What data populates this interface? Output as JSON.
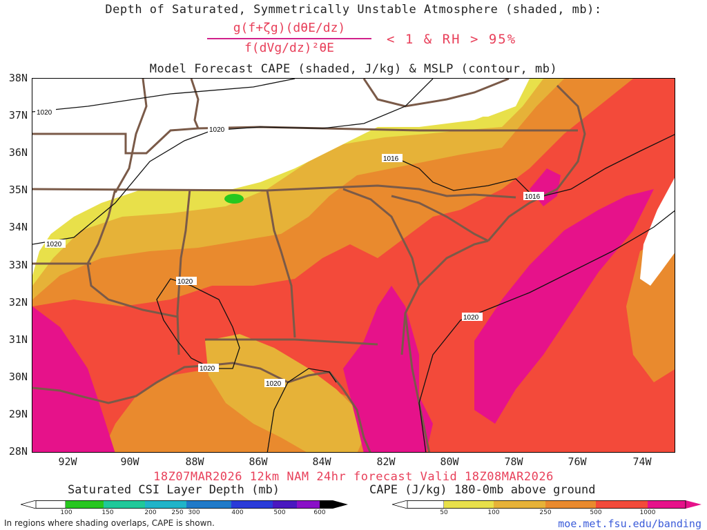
{
  "title_line1": "Depth of Saturated, Symmetrically Unstable Atmosphere (shaded, mb):",
  "equation": {
    "numerator": "g(f+ζg)(dθE/dz)",
    "denominator": "f(dVg/dz)²θE",
    "condition": "< 1 & RH > 95%"
  },
  "title_line2": "Model Forecast CAPE (shaded, J/kg) & MSLP (contour, mb)",
  "lat_labels": [
    "38N",
    "37N",
    "36N",
    "35N",
    "34N",
    "33N",
    "32N",
    "31N",
    "30N",
    "29N",
    "28N"
  ],
  "lon_labels": [
    "92W",
    "90W",
    "88W",
    "86W",
    "84W",
    "82W",
    "80W",
    "78W",
    "76W",
    "74W"
  ],
  "contour_labels": [
    "1020",
    "1020",
    "1016",
    "1016",
    "1020",
    "1020",
    "1020",
    "1020",
    "1020"
  ],
  "run_info": "18Z07MAR2026 12km NAM 24hr forecast Valid 18Z08MAR2026",
  "csi_colorbar": {
    "title": "Saturated CSI Layer Depth (mb)",
    "ticks": [
      "100",
      "150",
      "200",
      "250",
      "300",
      "400",
      "500",
      "600"
    ],
    "colors": [
      "#ffffff",
      "#27c71f",
      "#1fc99a",
      "#1fb4c9",
      "#1f7ac9",
      "#2a3bd9",
      "#4a18c0",
      "#8a10c8",
      "#000000"
    ]
  },
  "cape_colorbar": {
    "title": "CAPE (J/kg) 180-0mb above ground",
    "ticks": [
      "50",
      "100",
      "250",
      "500",
      "1000"
    ],
    "colors": [
      "#ffffff",
      "#e8e04a",
      "#e6b238",
      "#e98a2e",
      "#f34a3a",
      "#e6128a"
    ]
  },
  "footnote": "In regions where shading overlaps, CAPE is shown.",
  "credit": "moe.met.fsu.edu/banding",
  "colors": {
    "cape_50": "#e8e04a",
    "cape_100": "#e6b238",
    "cape_250": "#e98a2e",
    "cape_500": "#f34a3a",
    "cape_1000": "#e6128a",
    "csi_green": "#27c71f",
    "borders": "#7a5a48",
    "title_red": "#e8405a"
  }
}
